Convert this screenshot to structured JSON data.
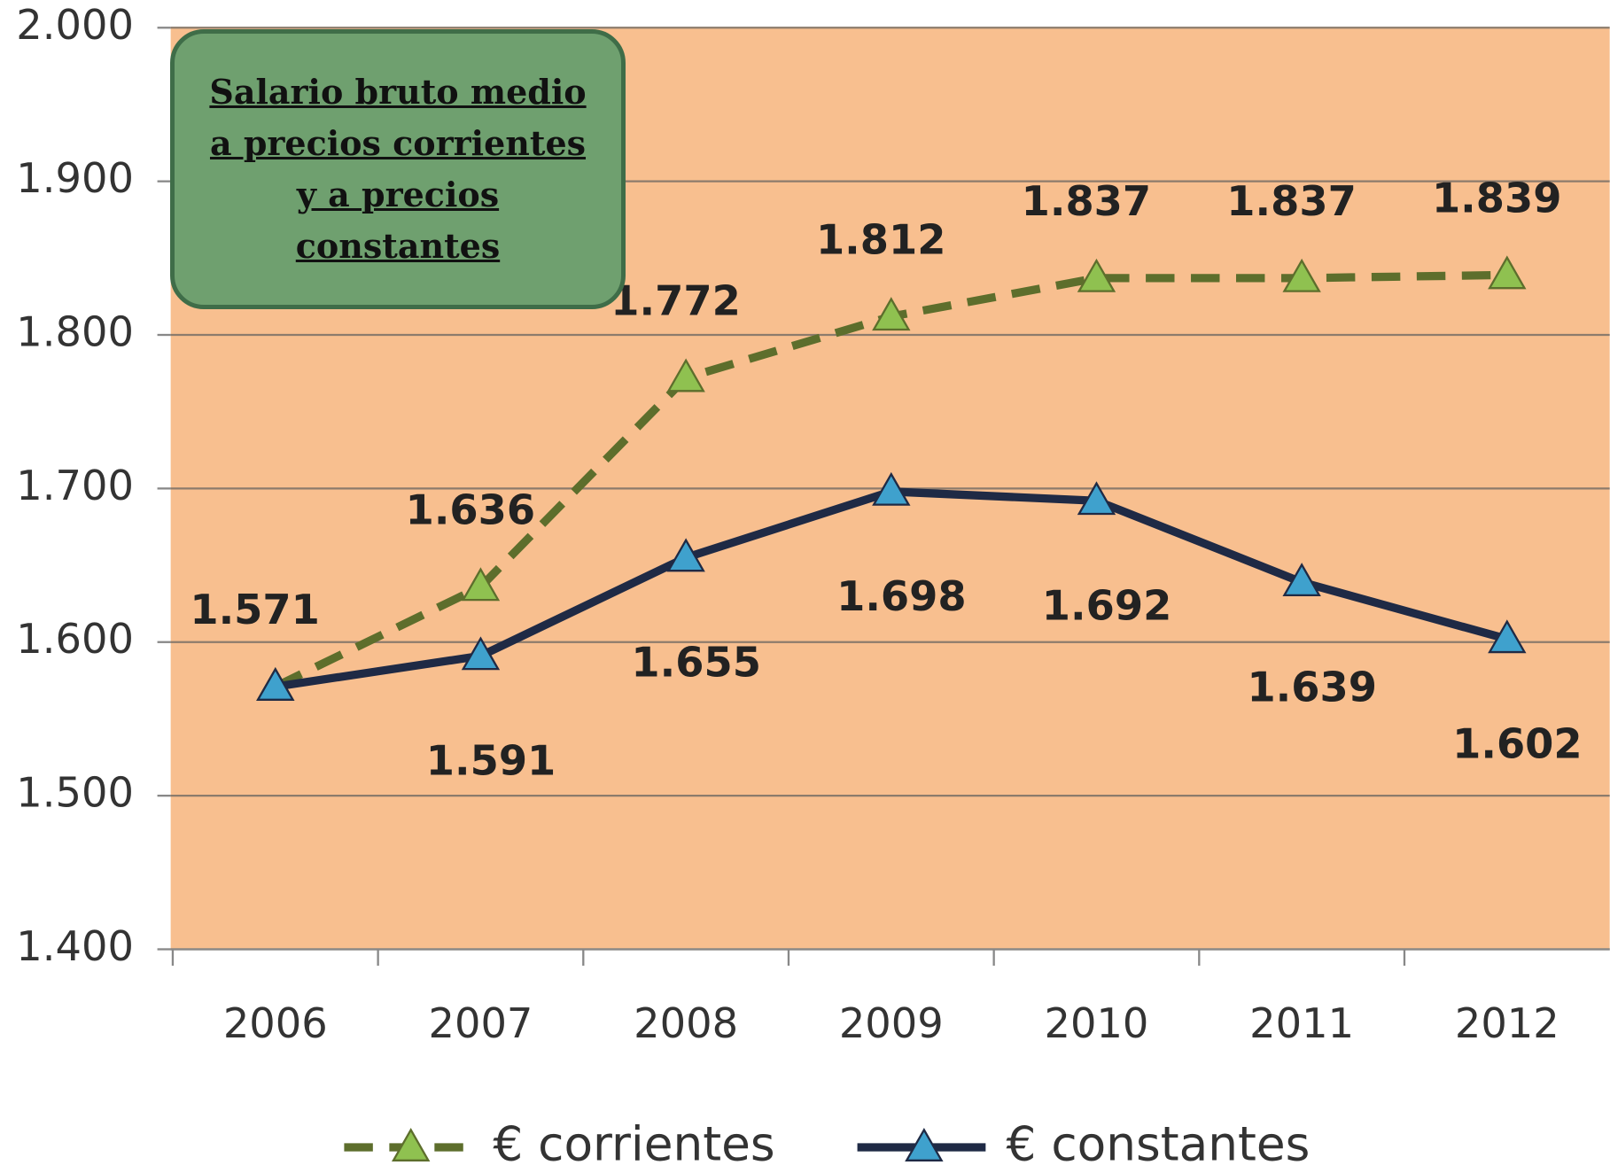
{
  "chart_data": {
    "type": "line",
    "title": "Salario bruto medio a precios corrientes y a precios constantes",
    "categories": [
      "2006",
      "2007",
      "2008",
      "2009",
      "2010",
      "2011",
      "2012"
    ],
    "series": [
      {
        "name": "€ corrientes",
        "color": "#5d6e2c",
        "marker_color": "#8fc150",
        "dashed": true,
        "values": [
          1571,
          1636,
          1772,
          1812,
          1837,
          1837,
          1839
        ],
        "value_labels": [
          "1.571",
          "1.636",
          "1.772",
          "1.812",
          "1.837",
          "1.837",
          "1.839"
        ]
      },
      {
        "name": "€ constantes",
        "color": "#1f2a45",
        "marker_color": "#3fa1cd",
        "dashed": false,
        "values": [
          1571,
          1591,
          1655,
          1698,
          1692,
          1639,
          1602
        ],
        "value_labels": [
          null,
          "1.591",
          "1.655",
          "1.698",
          "1.692",
          "1.639",
          "1.602"
        ]
      }
    ],
    "ylim": [
      1400,
      2000
    ],
    "yticks": [
      {
        "value": 1400,
        "label": "1.400"
      },
      {
        "value": 1500,
        "label": "1.500"
      },
      {
        "value": 1600,
        "label": "1.600"
      },
      {
        "value": 1700,
        "label": "1.700"
      },
      {
        "value": 1800,
        "label": "1.800"
      },
      {
        "value": 1900,
        "label": "1.900"
      },
      {
        "value": 2000,
        "label": "2.000"
      }
    ],
    "grid": true,
    "legend": "bottom",
    "plot_background": "#f8bf8f"
  }
}
